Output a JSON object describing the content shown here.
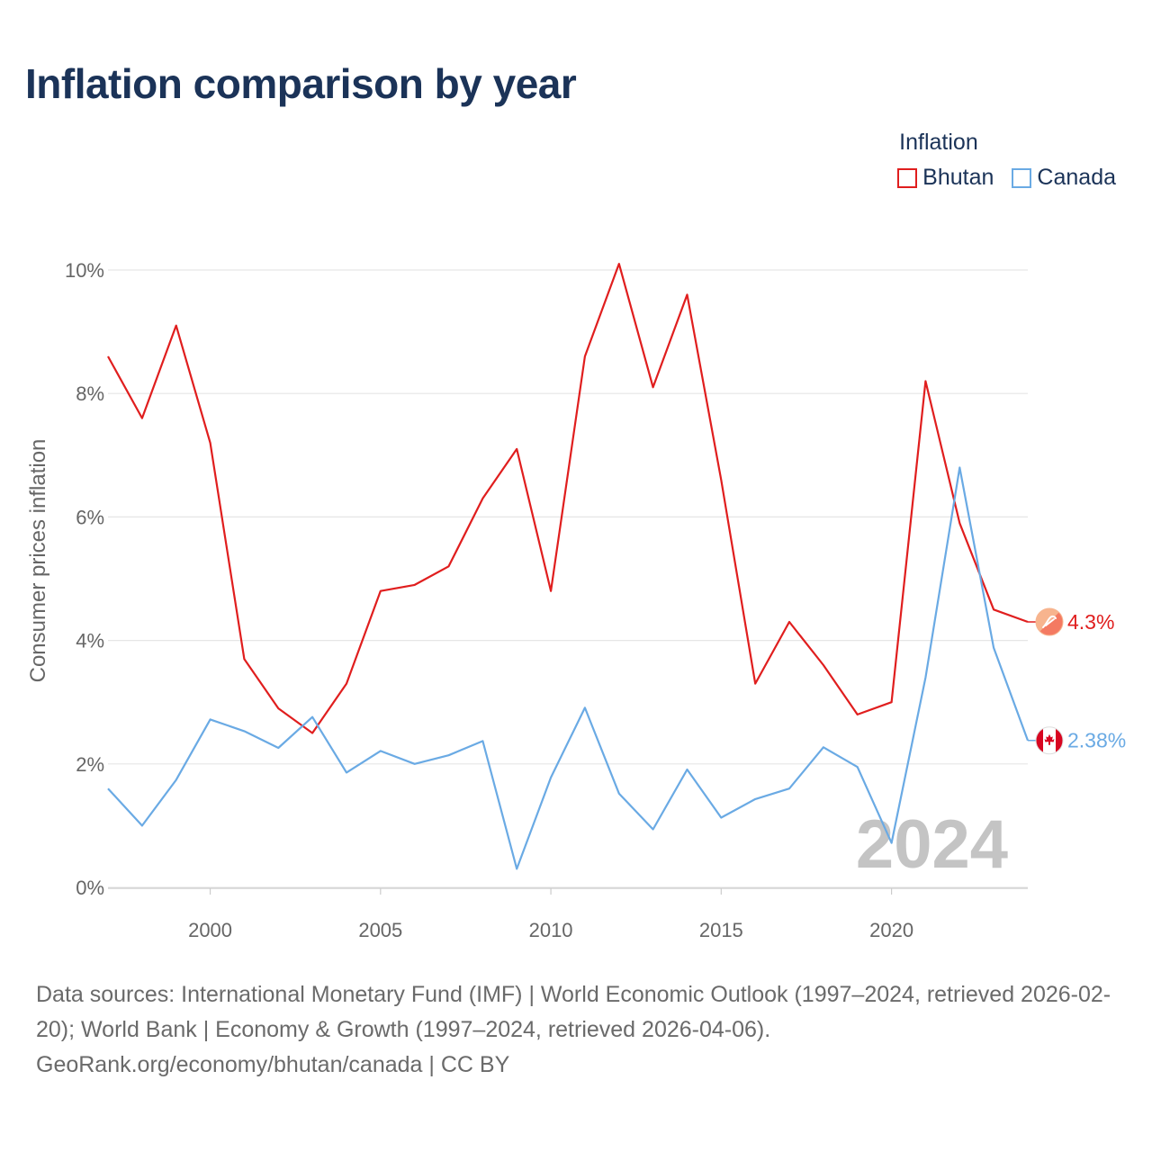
{
  "title": "Inflation comparison by year",
  "legend": {
    "title": "Inflation",
    "items": [
      {
        "label": "Bhutan",
        "color": "#e01e1e"
      },
      {
        "label": "Canada",
        "color": "#6aaae4"
      }
    ]
  },
  "chart_data": {
    "type": "line",
    "title": "Inflation comparison by year",
    "xlabel": "",
    "ylabel": "Consumer prices inflation",
    "xlim": [
      1997,
      2024
    ],
    "ylim": [
      0,
      10
    ],
    "x_ticks": [
      2000,
      2005,
      2010,
      2015,
      2020
    ],
    "x_tick_labels": [
      "2000",
      "2005",
      "2010",
      "2015",
      "2020"
    ],
    "y_ticks": [
      0,
      2,
      4,
      6,
      8,
      10
    ],
    "y_tick_labels": [
      "0%",
      "2%",
      "4%",
      "6%",
      "8%",
      "10%"
    ],
    "grid": true,
    "legend_position": "top-right",
    "year_watermark": "2024",
    "x": [
      1997,
      1998,
      1999,
      2000,
      2001,
      2002,
      2003,
      2004,
      2005,
      2006,
      2007,
      2008,
      2009,
      2010,
      2011,
      2012,
      2013,
      2014,
      2015,
      2016,
      2017,
      2018,
      2019,
      2020,
      2021,
      2022,
      2023,
      2024
    ],
    "series": [
      {
        "name": "Bhutan",
        "color": "#e01e1e",
        "end_label": "4.3%",
        "flag_icon": "bhutan-flag-icon",
        "values": [
          8.6,
          7.6,
          9.1,
          7.2,
          3.7,
          2.9,
          2.5,
          3.3,
          4.8,
          4.9,
          5.2,
          6.3,
          7.1,
          4.8,
          8.6,
          10.1,
          8.1,
          9.6,
          6.6,
          3.3,
          4.3,
          3.6,
          2.8,
          3.0,
          8.2,
          5.9,
          4.5,
          4.3
        ]
      },
      {
        "name": "Canada",
        "color": "#6aaae4",
        "end_label": "2.38%",
        "flag_icon": "canada-flag-icon",
        "values": [
          1.6,
          1.0,
          1.74,
          2.72,
          2.53,
          2.26,
          2.76,
          1.86,
          2.21,
          2.0,
          2.14,
          2.37,
          0.3,
          1.78,
          2.91,
          1.52,
          0.94,
          1.91,
          1.13,
          1.43,
          1.6,
          2.27,
          1.95,
          0.72,
          3.4,
          6.8,
          3.88,
          2.38
        ]
      }
    ]
  },
  "footer": {
    "sources": "Data sources: International Monetary Fund (IMF) | World Economic Outlook (1997–2024, retrieved 2026-02-20); World Bank | Economy & Growth (1997–2024, retrieved 2026-04-06).",
    "credit": "GeoRank.org/economy/bhutan/canada | CC BY"
  }
}
